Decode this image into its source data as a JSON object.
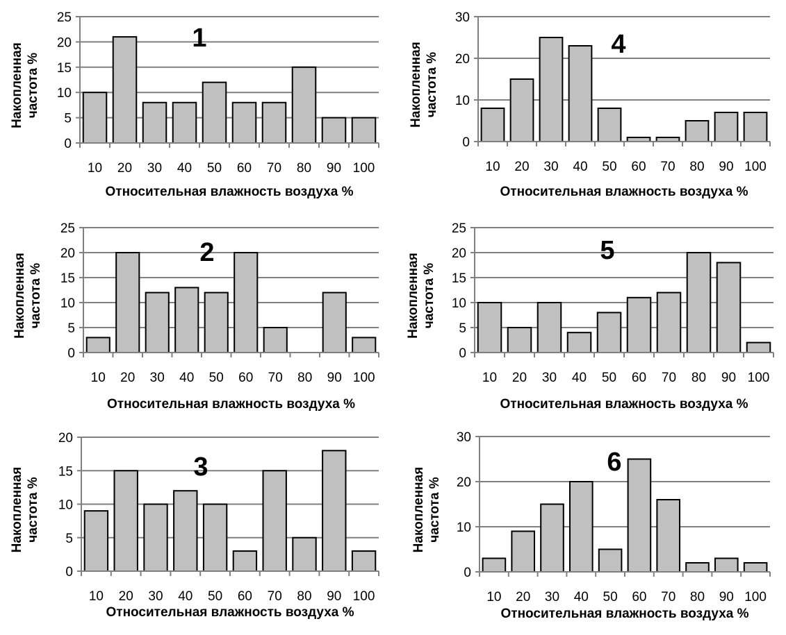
{
  "style": {
    "bar_fill": "#c0c0c0",
    "bar_stroke": "#000000",
    "grid_color": "#808080"
  },
  "chart_data": [
    {
      "type": "bar",
      "panel_label": "1",
      "categories": [
        "10",
        "20",
        "30",
        "40",
        "50",
        "60",
        "70",
        "80",
        "90",
        "100"
      ],
      "values": [
        10,
        21,
        8,
        8,
        12,
        8,
        8,
        15,
        5,
        5
      ],
      "ylim": [
        0,
        25
      ],
      "yticks": [
        "0",
        "5",
        "10",
        "15",
        "20",
        "25"
      ],
      "xlabel": "Относительная влажность воздуха %",
      "ylabel_line1": "Накопленная",
      "ylabel_line2": "частота %",
      "grid": true
    },
    {
      "type": "bar",
      "panel_label": "4",
      "categories": [
        "10",
        "20",
        "30",
        "40",
        "50",
        "60",
        "70",
        "80",
        "90",
        "100"
      ],
      "values": [
        8,
        15,
        25,
        23,
        8,
        1,
        1,
        5,
        7,
        7
      ],
      "ylim": [
        0,
        30
      ],
      "yticks": [
        "0",
        "10",
        "20",
        "30"
      ],
      "xlabel": "Относительная влажность воздуха %",
      "ylabel_line1": "Накопленная",
      "ylabel_line2": "частота %",
      "grid": true
    },
    {
      "type": "bar",
      "panel_label": "2",
      "categories": [
        "10",
        "20",
        "30",
        "40",
        "50",
        "60",
        "70",
        "80",
        "90",
        "100"
      ],
      "values": [
        3,
        20,
        12,
        13,
        12,
        20,
        5,
        0,
        12,
        3
      ],
      "ylim": [
        0,
        25
      ],
      "yticks": [
        "0",
        "5",
        "10",
        "15",
        "20",
        "25"
      ],
      "xlabel": "Относительная влажность воздуха %",
      "ylabel_line1": "Накопленная",
      "ylabel_line2": "частота %",
      "grid": true
    },
    {
      "type": "bar",
      "panel_label": "5",
      "categories": [
        "10",
        "20",
        "30",
        "40",
        "50",
        "60",
        "70",
        "80",
        "90",
        "100"
      ],
      "values": [
        10,
        5,
        10,
        4,
        8,
        11,
        12,
        20,
        18,
        2
      ],
      "ylim": [
        0,
        25
      ],
      "yticks": [
        "0",
        "5",
        "10",
        "15",
        "20",
        "25"
      ],
      "xlabel": "Относительная влажность воздуха %",
      "ylabel_line1": "Накопленная",
      "ylabel_line2": "частота %",
      "grid": true
    },
    {
      "type": "bar",
      "panel_label": "3",
      "categories": [
        "10",
        "20",
        "30",
        "40",
        "50",
        "60",
        "70",
        "80",
        "90",
        "100"
      ],
      "values": [
        9,
        15,
        10,
        12,
        10,
        3,
        15,
        5,
        18,
        3
      ],
      "ylim": [
        0,
        20
      ],
      "yticks": [
        "0",
        "5",
        "10",
        "15",
        "20"
      ],
      "xlabel": "Относительная влажность воздуха %",
      "ylabel_line1": "Накопленная",
      "ylabel_line2": "частота %",
      "grid": true
    },
    {
      "type": "bar",
      "panel_label": "6",
      "categories": [
        "10",
        "20",
        "30",
        "40",
        "50",
        "60",
        "70",
        "80",
        "90",
        "100"
      ],
      "values": [
        3,
        9,
        15,
        20,
        5,
        25,
        16,
        2,
        3,
        2
      ],
      "ylim": [
        0,
        30
      ],
      "yticks": [
        "0",
        "10",
        "20",
        "30"
      ],
      "xlabel": "Относительная влажность воздуха %",
      "ylabel_line1": "Накопленная",
      "ylabel_line2": "частота %",
      "grid": true
    }
  ]
}
